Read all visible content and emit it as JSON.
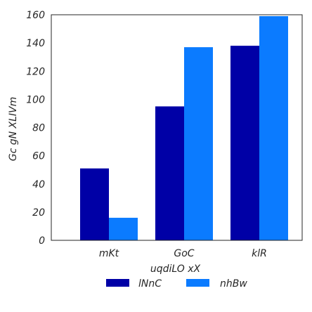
{
  "chart_data": {
    "type": "bar",
    "categories": [
      "mKt",
      "GoC",
      "klR"
    ],
    "series": [
      {
        "name": "lNnC",
        "color": "#0000a6",
        "values": [
          51,
          95,
          138
        ]
      },
      {
        "name": "nhBw",
        "color": "#0b7bff",
        "values": [
          16,
          137,
          159
        ]
      }
    ],
    "xlabel": "uqdiLO xX",
    "ylabel": "Gc gN XLIVm",
    "ylim": [
      0,
      160
    ],
    "yticks": [
      0,
      20,
      40,
      60,
      80,
      100,
      120,
      140,
      160
    ],
    "grid": false,
    "legend_position": "bottom-center"
  }
}
